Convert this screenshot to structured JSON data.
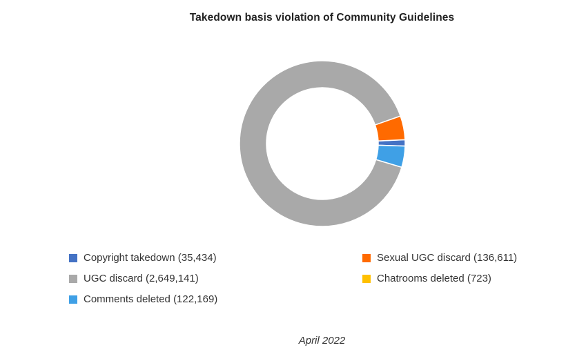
{
  "chart_data": {
    "type": "pie",
    "subtype": "donut",
    "title": "Takedown basis violation of Community Guidelines",
    "legend_position": "bottom",
    "series": [
      {
        "name": "Copyright takedown",
        "label": "Copyright takedown (35,434)",
        "value": 35434,
        "color": "#4472c4"
      },
      {
        "name": "Sexual UGC discard",
        "label": "Sexual UGC discard (136,611)",
        "value": 136611,
        "color": "#ff6a00"
      },
      {
        "name": "UGC discard",
        "label": "UGC discard (2,649,141)",
        "value": 2649141,
        "color": "#a9a9a9"
      },
      {
        "name": "Chatrooms deleted",
        "label": "Chatrooms deleted (723)",
        "value": 723,
        "color": "#ffc000"
      },
      {
        "name": "Comments deleted",
        "label": "Comments deleted (122,169)",
        "value": 122169,
        "color": "#3fa0e6"
      }
    ]
  },
  "footer": {
    "period": "April 2022"
  }
}
